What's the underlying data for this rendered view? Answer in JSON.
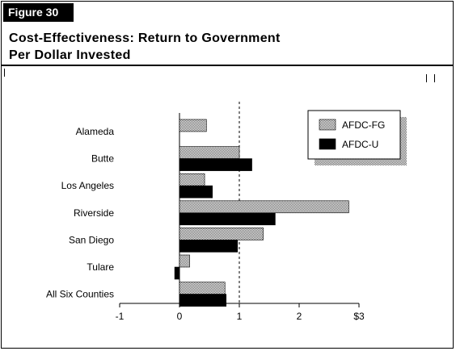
{
  "figure": {
    "label": "Figure 30"
  },
  "header": {
    "title_line1": "Cost-Effectiveness: Return to Government",
    "title_line2": "Per Dollar Invested"
  },
  "chart_data": {
    "type": "bar",
    "orientation": "horizontal",
    "categories": [
      "Alameda",
      "Butte",
      "Los Angeles",
      "Riverside",
      "San Diego",
      "Tulare",
      "All Six Counties"
    ],
    "series": [
      {
        "name": "AFDC-FG",
        "values": [
          0.45,
          1.0,
          0.42,
          2.83,
          1.4,
          0.17,
          0.76
        ],
        "pattern": "dotted-gray"
      },
      {
        "name": "AFDC-U",
        "values": [
          null,
          1.21,
          0.55,
          1.6,
          0.97,
          -0.08,
          0.78
        ],
        "pattern": "solid-black"
      }
    ],
    "x_ticks": [
      "-1",
      "0",
      "1",
      "2",
      "$3"
    ],
    "xlim": [
      -1,
      3
    ],
    "reference_line": 1,
    "legend_position": "top-right",
    "colors": {
      "afdc_fg_fill": "#c8c8c8",
      "afdc_u_fill": "#000000"
    }
  }
}
